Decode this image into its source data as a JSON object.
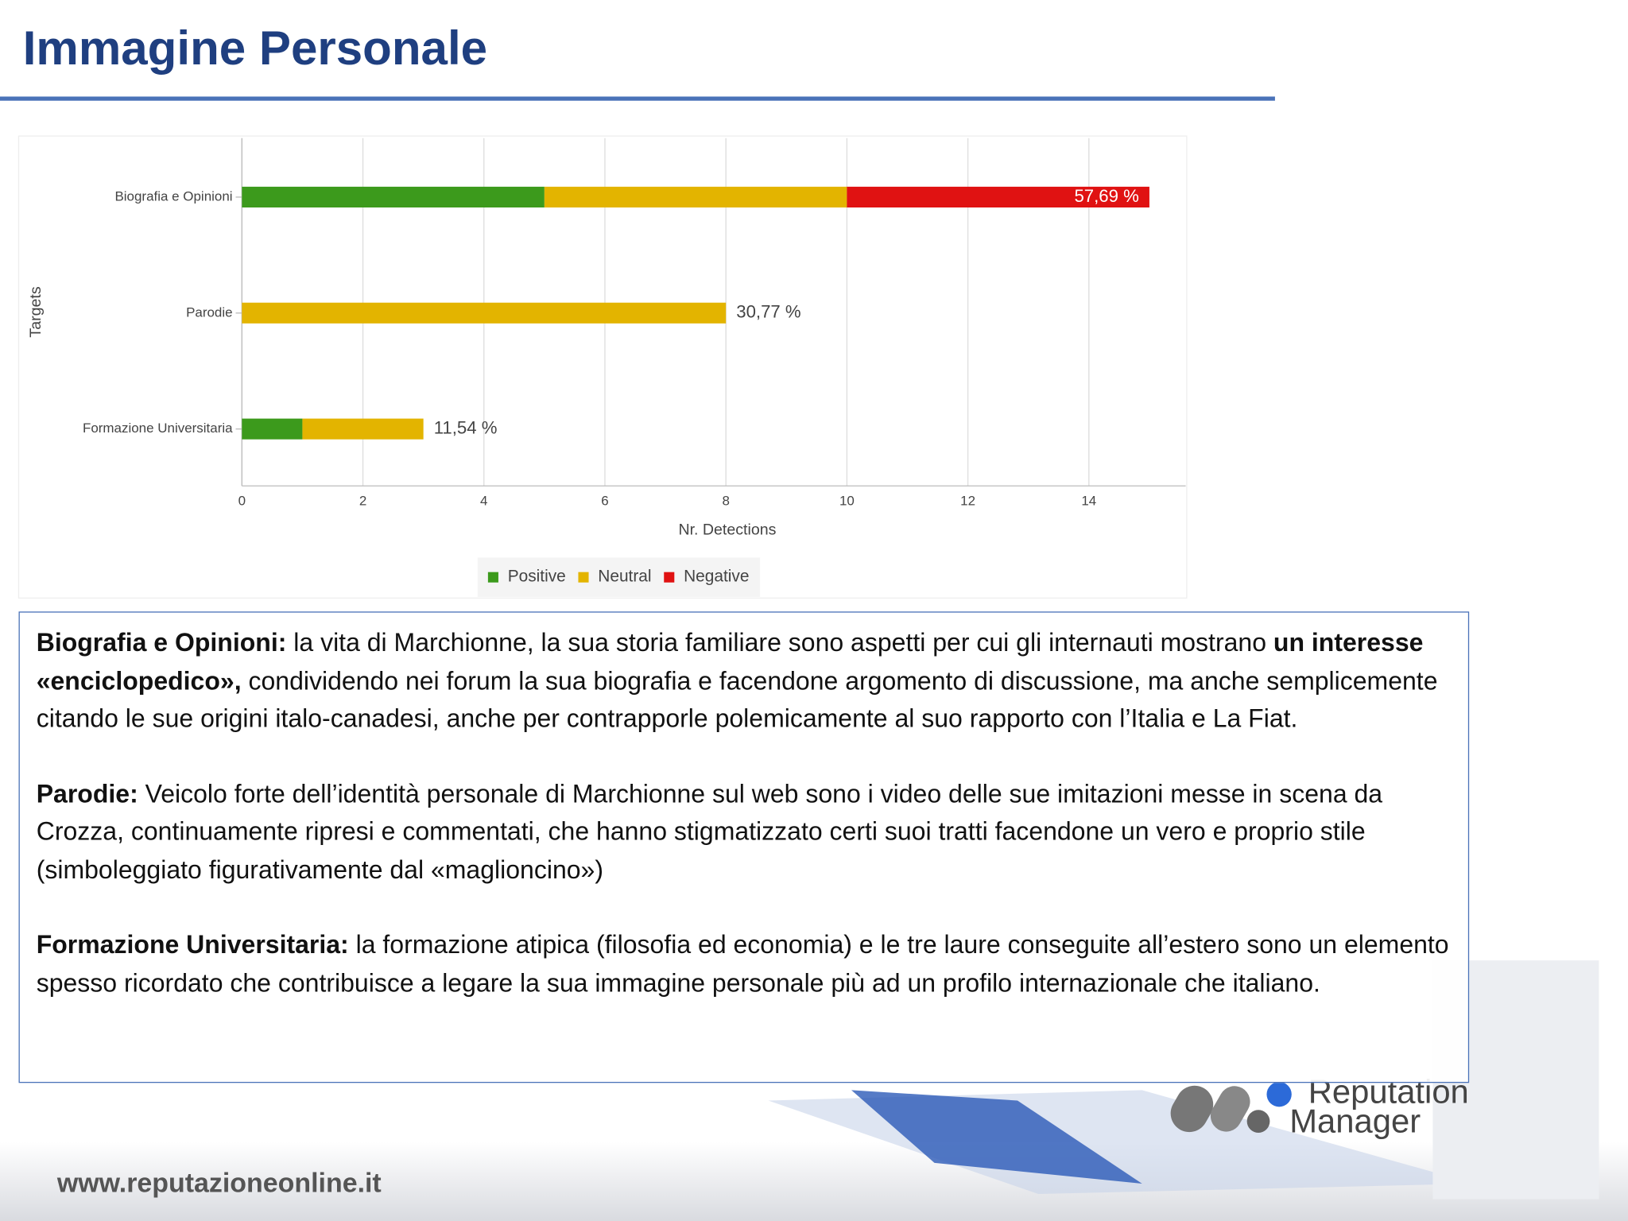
{
  "title": "Immagine Personale",
  "chart_data": {
    "type": "hbar_stacked",
    "categories": [
      "Biografia e Opinioni",
      "Parodie",
      "Formazione Universitaria"
    ],
    "series": [
      {
        "name": "Positive",
        "color": "#3c9a1c",
        "values": [
          5,
          0,
          1
        ]
      },
      {
        "name": "Neutral",
        "color": "#e3b400",
        "values": [
          5,
          8,
          2
        ]
      },
      {
        "name": "Negative",
        "color": "#e01212",
        "values": [
          5,
          0,
          0
        ]
      }
    ],
    "share_labels": [
      "57,69 %",
      "30,77 %",
      "11,54 %"
    ],
    "xlim": [
      0,
      15.6
    ],
    "xticks": [
      0,
      2,
      4,
      6,
      8,
      10,
      12,
      14
    ],
    "xlabel": "Nr. Detections",
    "ylabel": "Targets",
    "grid": true,
    "legend": "bottom"
  },
  "paragraphs": [
    [
      {
        "text": "Biografia e Opinioni:",
        "bold": true
      },
      {
        "text": " la vita di Marchionne, la sua storia familiare sono aspetti per cui gli internauti mostrano ",
        "bold": false
      },
      {
        "text": "un interesse «enciclopedico»,",
        "bold": true
      },
      {
        "text": " condividendo nei forum la sua biografia e facendone argomento di discussione, ma anche semplicemente citando le sue origini italo-canadesi, anche per contrapporle polemicamente al suo rapporto con l’Italia e La Fiat.",
        "bold": false
      }
    ],
    [
      {
        "text": "Parodie:",
        "bold": true
      },
      {
        "text": " Veicolo forte dell’identità personale di Marchionne sul web sono i video delle sue imitazioni messe in scena da Crozza, continuamente ripresi e commentati, che hanno stigmatizzato certi suoi tratti facendone un vero e proprio stile (simboleggiato figurativamente dal «maglioncino»)",
        "bold": false
      }
    ],
    [
      {
        "text": "Formazione Universitaria:",
        "bold": true
      },
      {
        "text": " la formazione atipica (filosofia ed economia) e le tre laure conseguite all’estero sono un elemento spesso ricordato che contribuisce a legare la sua immagine personale più ad un profilo internazionale che italiano.",
        "bold": false
      }
    ]
  ],
  "footer": {
    "url": "www.reputazioneonline.it",
    "logo_line1": "Reputation",
    "logo_line2": "Manager"
  }
}
